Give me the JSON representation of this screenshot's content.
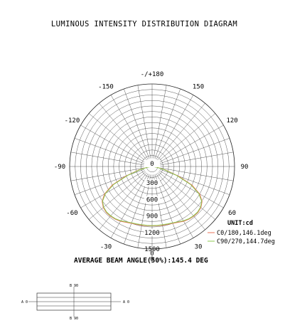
{
  "chart_data": {
    "type": "polar",
    "title": "LUMINOUS INTENSITY DISTRIBUTION DIAGRAM",
    "angle_labels": [
      "-/+180",
      "150",
      "120",
      "90",
      "60",
      "30",
      "0",
      "-30",
      "-60",
      "-90",
      "-120",
      "-150"
    ],
    "radial_ticks": [
      "0",
      "300",
      "600",
      "900",
      "1200",
      "1500"
    ],
    "rlim": [
      0,
      1500
    ],
    "unit_label": "UNIT:cd",
    "grid": true,
    "legend_position": "bottom-right",
    "beam_angle_text": "AVERAGE BEAM ANGLE(50%):145.4 DEG",
    "series": [
      {
        "name": "C0/180,146.1deg",
        "color": "#e8735a",
        "angles": [
          -90,
          -85,
          -80,
          -75,
          -70,
          -65,
          -60,
          -55,
          -50,
          -45,
          -40,
          -35,
          -30,
          -25,
          -20,
          -15,
          -10,
          -5,
          0,
          5,
          10,
          15,
          20,
          25,
          30,
          35,
          40,
          45,
          50,
          55,
          60,
          65,
          70,
          75,
          80,
          85,
          90
        ],
        "values": [
          0,
          30,
          100,
          260,
          510,
          800,
          1000,
          1110,
          1160,
          1180,
          1180,
          1170,
          1150,
          1120,
          1100,
          1090,
          1085,
          1080,
          1080,
          1080,
          1085,
          1090,
          1100,
          1120,
          1150,
          1170,
          1180,
          1180,
          1160,
          1110,
          1000,
          800,
          510,
          260,
          100,
          30,
          0
        ]
      },
      {
        "name": "C90/270,144.7deg",
        "color": "#8cc850",
        "angles": [
          -90,
          -85,
          -80,
          -75,
          -70,
          -65,
          -60,
          -55,
          -50,
          -45,
          -40,
          -35,
          -30,
          -25,
          -20,
          -15,
          -10,
          -5,
          0,
          5,
          10,
          15,
          20,
          25,
          30,
          35,
          40,
          45,
          50,
          55,
          60,
          65,
          70,
          75,
          80,
          85,
          90
        ],
        "values": [
          0,
          25,
          90,
          230,
          470,
          770,
          980,
          1100,
          1150,
          1170,
          1170,
          1160,
          1140,
          1110,
          1090,
          1080,
          1075,
          1075,
          1075,
          1075,
          1075,
          1080,
          1090,
          1110,
          1140,
          1160,
          1170,
          1170,
          1150,
          1100,
          980,
          770,
          470,
          230,
          90,
          25,
          0
        ]
      }
    ]
  },
  "diagram": {
    "left_label": "A 0",
    "right_label": "A 0",
    "top_label": "B 90",
    "bottom_label": "B 90"
  }
}
